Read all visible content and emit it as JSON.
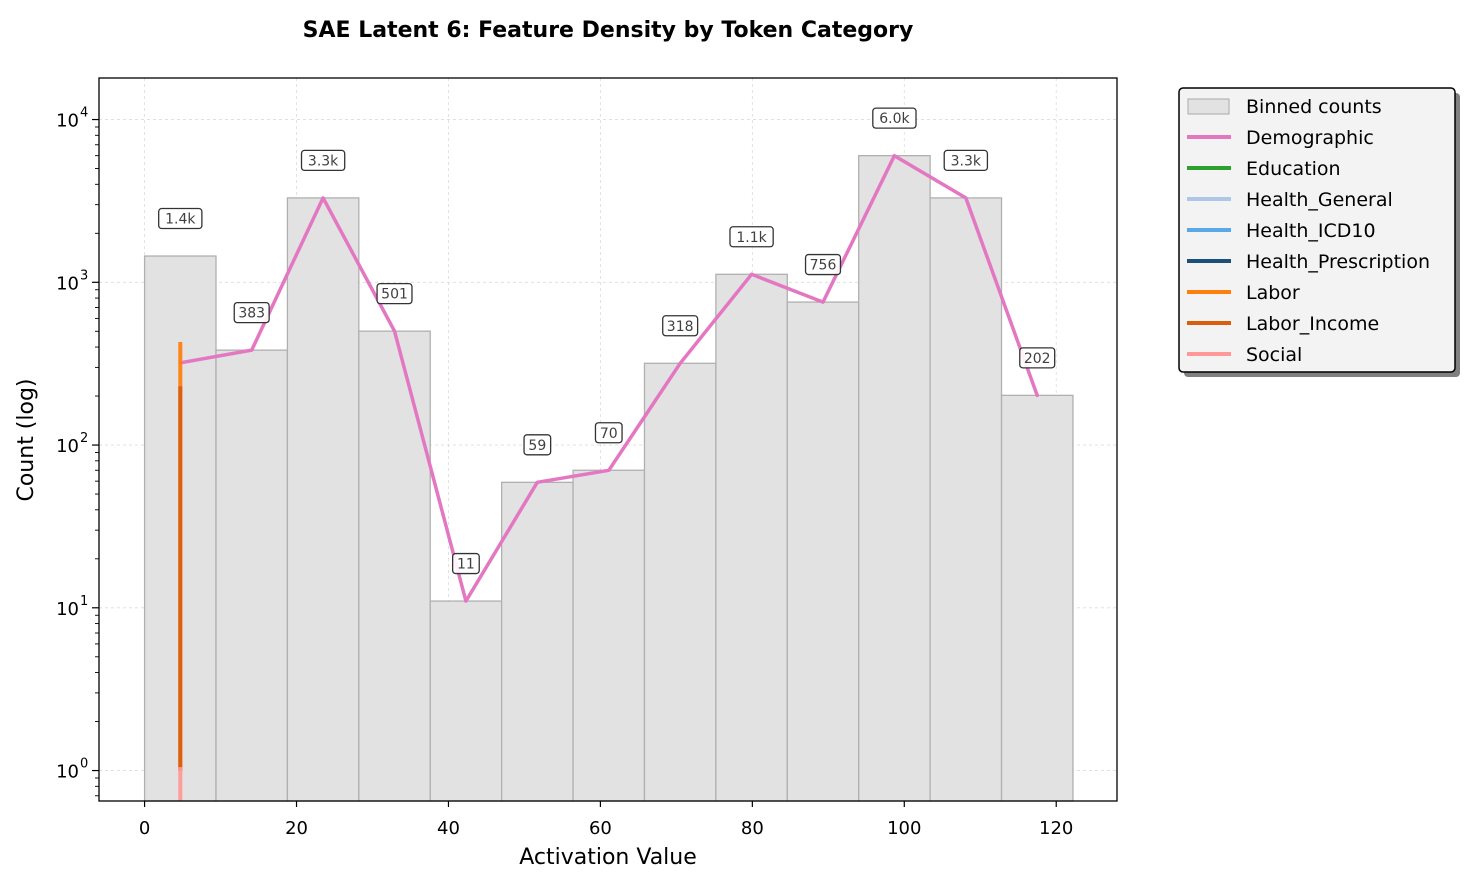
{
  "chart_data": {
    "type": "bar",
    "title": "SAE Latent 6: Feature Density by Token Category",
    "xlabel": "Activation Value",
    "ylabel": "Count (log)",
    "xlim": [
      -6,
      128
    ],
    "ylim": [
      0.65,
      18000
    ],
    "yscale": "log",
    "grid": true,
    "legend_position": "outside-right",
    "x_ticks": [
      {
        "value": 0,
        "label": "0"
      },
      {
        "value": 20,
        "label": "20"
      },
      {
        "value": 40,
        "label": "40"
      },
      {
        "value": 60,
        "label": "60"
      },
      {
        "value": 80,
        "label": "80"
      },
      {
        "value": 100,
        "label": "100"
      },
      {
        "value": 120,
        "label": "120"
      }
    ],
    "y_ticks": [
      {
        "value": 1,
        "base": "10",
        "exp": "0"
      },
      {
        "value": 10,
        "base": "10",
        "exp": "1"
      },
      {
        "value": 100,
        "base": "10",
        "exp": "2"
      },
      {
        "value": 1000,
        "base": "10",
        "exp": "3"
      },
      {
        "value": 10000,
        "base": "10",
        "exp": "4"
      }
    ],
    "bins": [
      {
        "x0": 0,
        "x1": 9.4,
        "count": 1450,
        "label": "1.4k"
      },
      {
        "x0": 9.4,
        "x1": 18.8,
        "count": 383,
        "label": "383"
      },
      {
        "x0": 18.8,
        "x1": 28.2,
        "count": 3300,
        "label": "3.3k"
      },
      {
        "x0": 28.2,
        "x1": 37.6,
        "count": 501,
        "label": "501"
      },
      {
        "x0": 37.6,
        "x1": 47.0,
        "count": 11,
        "label": "11"
      },
      {
        "x0": 47.0,
        "x1": 56.4,
        "count": 59,
        "label": "59"
      },
      {
        "x0": 56.4,
        "x1": 65.8,
        "count": 70,
        "label": "70"
      },
      {
        "x0": 65.8,
        "x1": 75.2,
        "count": 318,
        "label": "318"
      },
      {
        "x0": 75.2,
        "x1": 84.6,
        "count": 1120,
        "label": "1.1k"
      },
      {
        "x0": 84.6,
        "x1": 94.0,
        "count": 756,
        "label": "756"
      },
      {
        "x0": 94.0,
        "x1": 103.4,
        "count": 6000,
        "label": "6.0k"
      },
      {
        "x0": 103.4,
        "x1": 112.8,
        "count": 3300,
        "label": "3.3k"
      },
      {
        "x0": 112.8,
        "x1": 122.2,
        "count": 202,
        "label": "202"
      }
    ],
    "series": [
      {
        "name": "Demographic",
        "color": "#e377c2",
        "x": [
          4.7,
          14.1,
          23.5,
          32.9,
          42.3,
          51.7,
          61.1,
          70.5,
          79.9,
          89.3,
          98.7,
          108.1,
          117.5
        ],
        "y": [
          320,
          383,
          3300,
          501,
          11,
          59,
          70,
          318,
          1120,
          756,
          6000,
          3300,
          202
        ]
      },
      {
        "name": "Education",
        "color": "#2ca02c",
        "x": [],
        "y": []
      },
      {
        "name": "Health_General",
        "color": "#aec7e8",
        "x": [],
        "y": []
      },
      {
        "name": "Health_ICD10",
        "color": "#5ba8e6",
        "x": [],
        "y": []
      },
      {
        "name": "Health_Prescription",
        "color": "#1a4f7a",
        "x": [],
        "y": []
      },
      {
        "name": "Labor",
        "color": "#ff7f0e",
        "x": [
          4.7,
          4.7
        ],
        "y": [
          1,
          430
        ]
      },
      {
        "name": "Labor_Income",
        "color": "#d95f0e",
        "x": [
          4.7,
          4.7
        ],
        "y": [
          1,
          230
        ]
      },
      {
        "name": "Social",
        "color": "#ff9896",
        "x": [
          4.7,
          4.7
        ],
        "y": [
          0.65,
          1.05
        ]
      }
    ],
    "legend": [
      {
        "label": "Binned counts",
        "kind": "patch",
        "color": "#e2e2e2"
      },
      {
        "label": "Demographic",
        "kind": "line",
        "color": "#e377c2"
      },
      {
        "label": "Education",
        "kind": "line",
        "color": "#2ca02c"
      },
      {
        "label": "Health_General",
        "kind": "line",
        "color": "#aec7e8"
      },
      {
        "label": "Health_ICD10",
        "kind": "line",
        "color": "#5ba8e6"
      },
      {
        "label": "Health_Prescription",
        "kind": "line",
        "color": "#1a4f7a"
      },
      {
        "label": "Labor",
        "kind": "line",
        "color": "#ff7f0e"
      },
      {
        "label": "Labor_Income",
        "kind": "line",
        "color": "#d95f0e"
      },
      {
        "label": "Social",
        "kind": "line",
        "color": "#ff9896"
      }
    ]
  }
}
